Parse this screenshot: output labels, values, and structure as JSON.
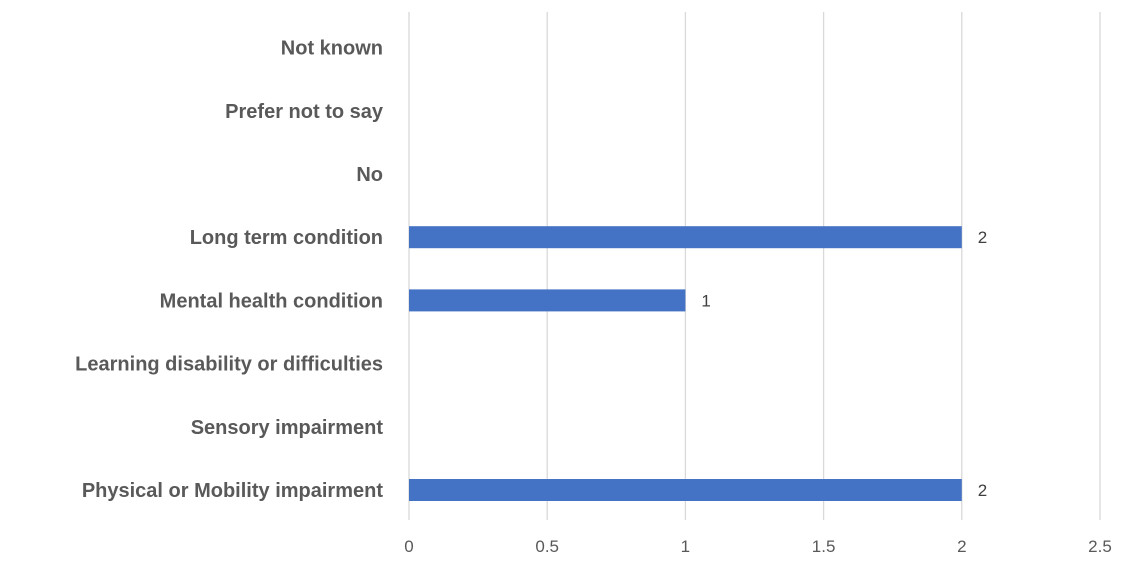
{
  "chart_data": {
    "type": "bar",
    "orientation": "horizontal",
    "categories": [
      "Physical or Mobility impairment",
      "Sensory impairment",
      "Learning disability or difficulties",
      "Mental health condition",
      "Long term condition",
      "No",
      "Prefer not to say",
      "Not known"
    ],
    "values": [
      2,
      0,
      0,
      1,
      2,
      0,
      0,
      0
    ],
    "data_labels": [
      "2",
      "",
      "",
      "1",
      "2",
      "",
      "",
      ""
    ],
    "title": "",
    "xlabel": "",
    "ylabel": "",
    "xlim": [
      0,
      2.5
    ],
    "xticks": [
      0,
      0.5,
      1,
      1.5,
      2,
      2.5
    ],
    "xtick_labels": [
      "0",
      "0.5",
      "1",
      "1.5",
      "2",
      "2.5"
    ],
    "grid": "vertical",
    "legend": "none",
    "bar_color": "#4472C4"
  }
}
